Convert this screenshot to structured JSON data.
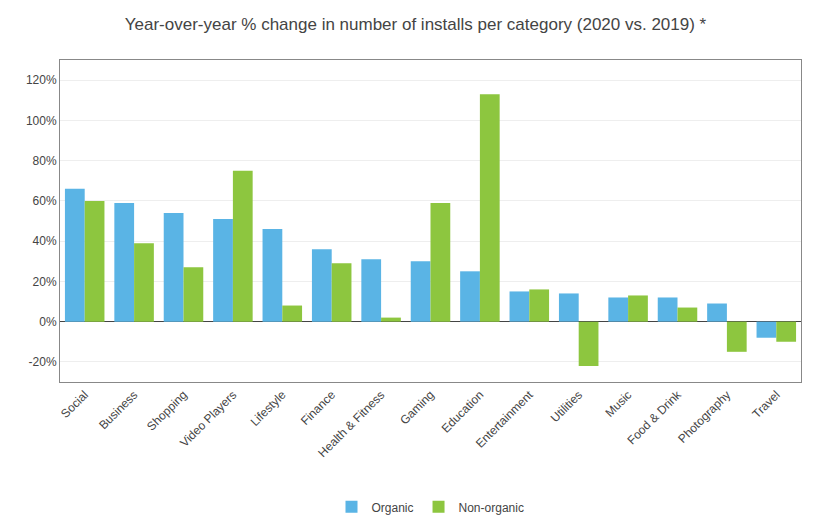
{
  "chart_data": {
    "type": "bar",
    "title": "Year-over-year % change in number of installs per category (2020 vs. 2019) *",
    "categories": [
      "Social",
      "Business",
      "Shopping",
      "Video Players",
      "Lifestyle",
      "Finance",
      "Health & Fitness",
      "Gaming",
      "Education",
      "Entertainment",
      "Utilities",
      "Music",
      "Food & Drink",
      "Photography",
      "Travel"
    ],
    "series": [
      {
        "name": "Organic",
        "color": "#5ab4e5",
        "values": [
          66,
          59,
          54,
          51,
          46,
          36,
          31,
          30,
          25,
          15,
          14,
          12,
          12,
          9,
          -8
        ]
      },
      {
        "name": "Non-organic",
        "color": "#8dc63f",
        "values": [
          60,
          39,
          27,
          75,
          8,
          29,
          2,
          59,
          113,
          16,
          -22,
          13,
          7,
          -15,
          -10
        ]
      }
    ],
    "ylim": [
      -30,
      130
    ],
    "yticks": [
      {
        "value": -20,
        "label": "-20%"
      },
      {
        "value": 0,
        "label": "0%"
      },
      {
        "value": 20,
        "label": "20%"
      },
      {
        "value": 40,
        "label": "40%"
      },
      {
        "value": 60,
        "label": "60%"
      },
      {
        "value": 80,
        "label": "80%"
      },
      {
        "value": 100,
        "label": "100%"
      },
      {
        "value": 120,
        "label": "120%"
      }
    ],
    "grid": true,
    "legend": "bottom"
  }
}
